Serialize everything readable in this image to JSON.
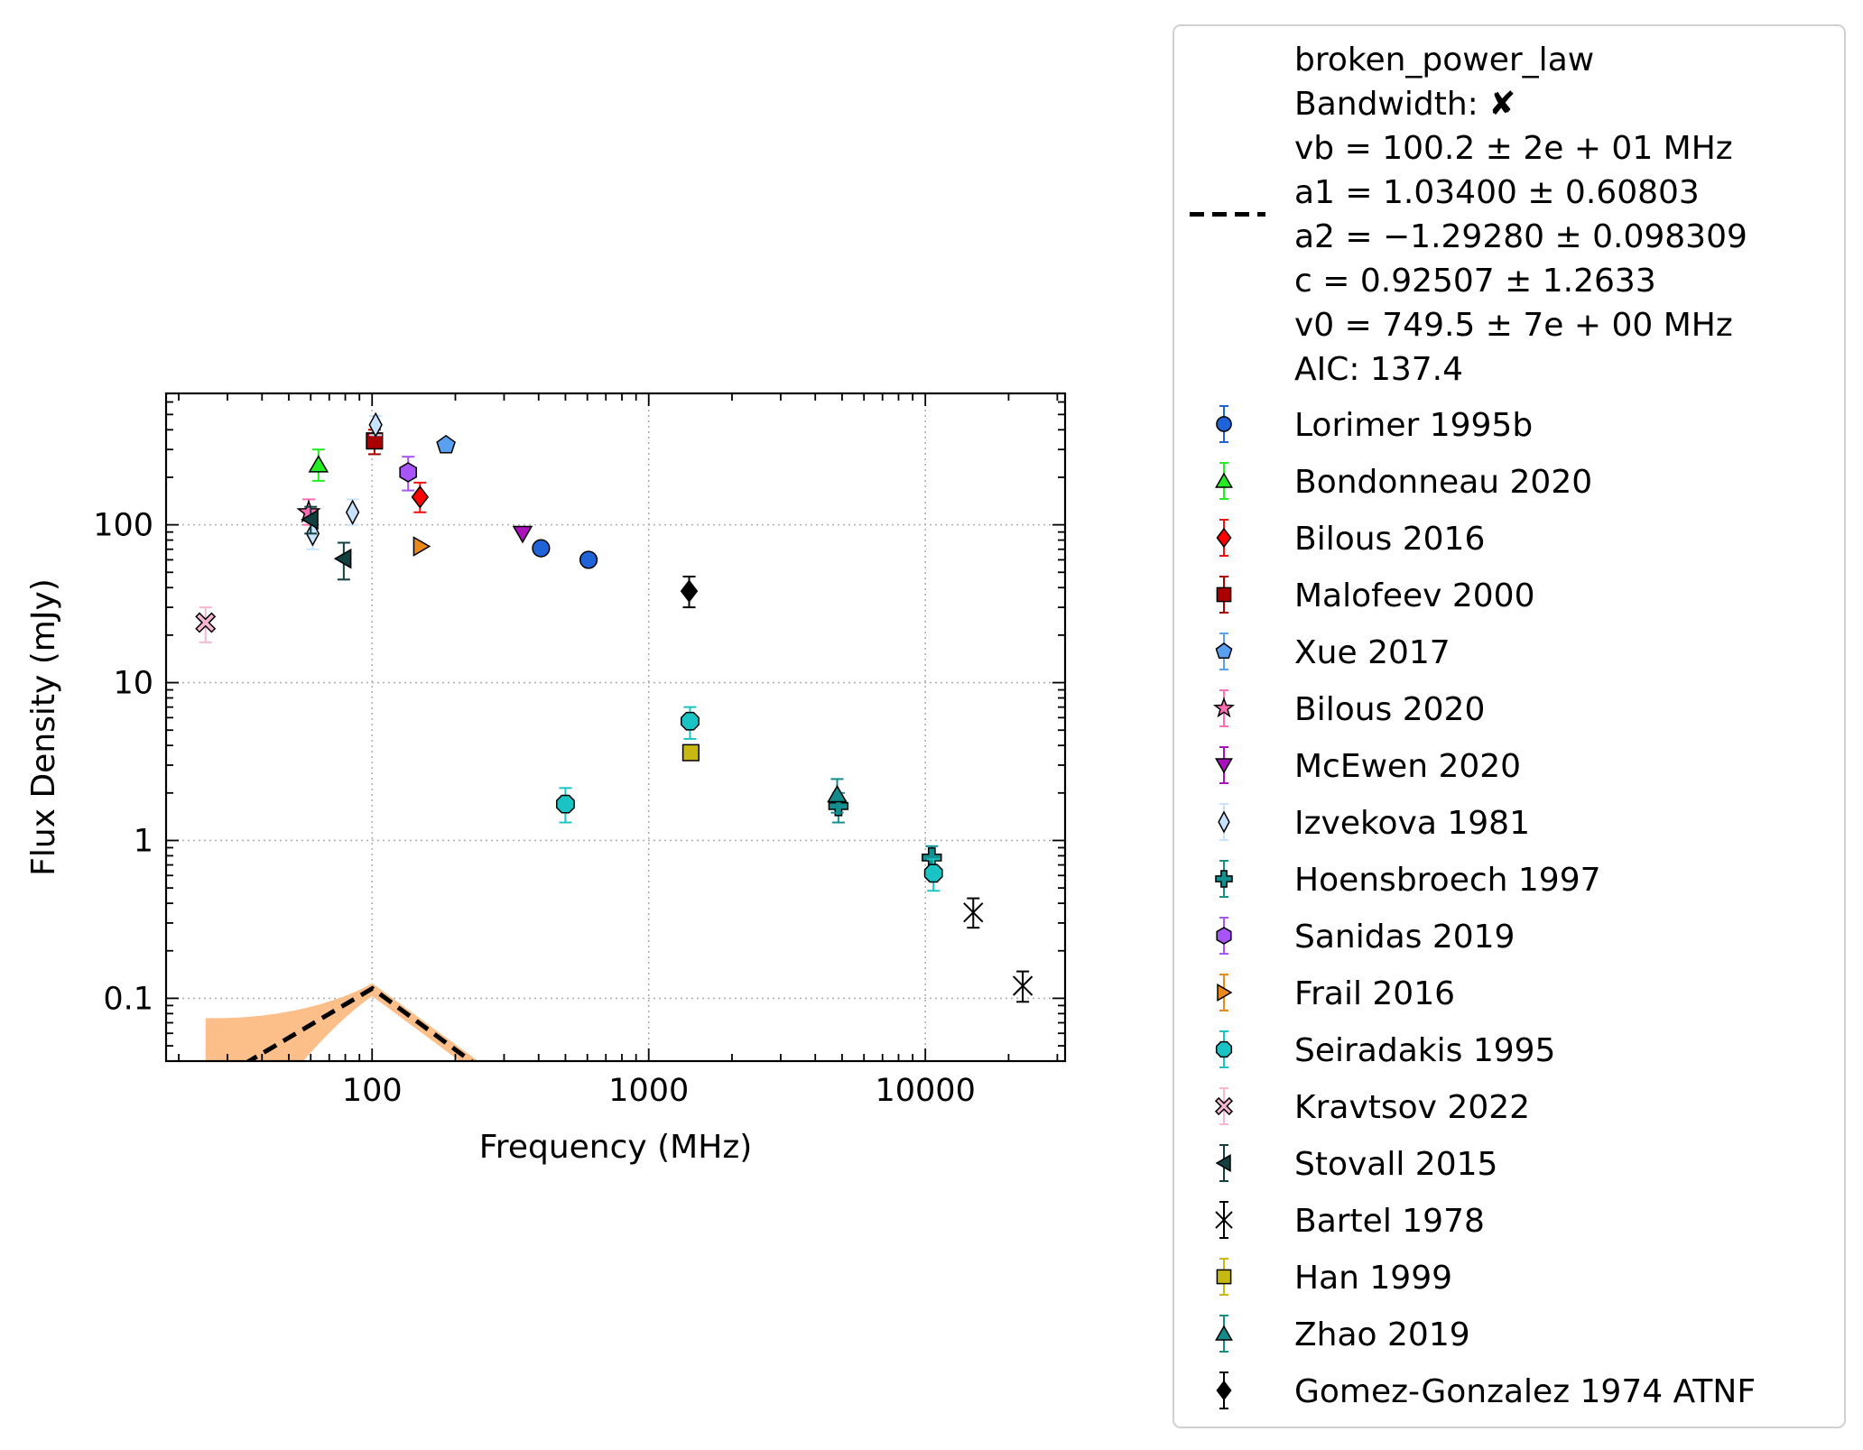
{
  "chart_data": {
    "type": "scatter",
    "x_scale": "log",
    "y_scale": "log",
    "xlabel": "Frequency (MHz)",
    "ylabel": "Flux Density (mJy)",
    "xlim": [
      18,
      32000
    ],
    "ylim": [
      0.04,
      680
    ],
    "grid": true,
    "legend_position": "outside-right",
    "x_ticks": [
      {
        "value": 100,
        "label": "100"
      },
      {
        "value": 1000,
        "label": "1000"
      },
      {
        "value": 10000,
        "label": "10000"
      }
    ],
    "y_ticks": [
      {
        "value": 0.1,
        "label": "0.1"
      },
      {
        "value": 1,
        "label": "1"
      },
      {
        "value": 10,
        "label": "10"
      },
      {
        "value": 100,
        "label": "100"
      }
    ],
    "fit": {
      "name": "broken_power_law",
      "legend_lines": [
        "broken_power_law",
        "Bandwidth: ✘",
        "vb = 100.2 ± 2e + 01 MHz",
        "a1 = 1.03400 ± 0.60803",
        "a2 = −1.29280 ± 0.098309",
        "c = 0.92507 ± 1.2633",
        "v0 = 749.5 ± 7e + 00 MHz",
        "AIC: 137.4"
      ],
      "vb": 100.2,
      "a1": 1.034,
      "a2": -1.2928,
      "c": 0.92507,
      "v0": 749.5,
      "x_range": [
        25,
        22000
      ],
      "line_color": "#000000",
      "band_color": "#fdbf8a"
    },
    "series": [
      {
        "name": "Lorimer 1995b",
        "marker": "circle",
        "color": "#1f63d9",
        "ecolor": "#1f63d9",
        "points": [
          {
            "x": 408,
            "y": 71
          },
          {
            "x": 606,
            "y": 60
          }
        ]
      },
      {
        "name": "Bondonneau 2020",
        "marker": "triangle-up",
        "color": "#22ee22",
        "ecolor": "#22ee22",
        "points": [
          {
            "x": 64,
            "y": 240,
            "lo": 190,
            "hi": 300
          }
        ]
      },
      {
        "name": "Bilous 2016",
        "marker": "diamond",
        "color": "#ff0000",
        "ecolor": "#ee1111",
        "points": [
          {
            "x": 149,
            "y": 150,
            "lo": 120,
            "hi": 185
          }
        ]
      },
      {
        "name": "Malofeev 2000",
        "marker": "square",
        "color": "#aa0000",
        "ecolor": "#aa0000",
        "points": [
          {
            "x": 102,
            "y": 340,
            "lo": 280,
            "hi": 400
          }
        ]
      },
      {
        "name": "Xue 2017",
        "marker": "pentagon",
        "color": "#5aa0f0",
        "ecolor": "#5aa0f0",
        "points": [
          {
            "x": 185,
            "y": 320
          }
        ]
      },
      {
        "name": "Bilous 2020",
        "marker": "star",
        "color": "#ff6eb4",
        "ecolor": "#ff6eb4",
        "points": [
          {
            "x": 59,
            "y": 120,
            "lo": 100,
            "hi": 145
          }
        ]
      },
      {
        "name": "McEwen 2020",
        "marker": "triangle-down",
        "color": "#aa10bb",
        "ecolor": "#aa10bb",
        "points": [
          {
            "x": 350,
            "y": 88
          }
        ]
      },
      {
        "name": "Izvekova 1981",
        "marker": "thin-diamond",
        "color": "#c6e2ff",
        "ecolor": "#c6e2ff",
        "points": [
          {
            "x": 61,
            "y": 88,
            "lo": 70,
            "hi": 105
          },
          {
            "x": 85,
            "y": 120,
            "lo": 100,
            "hi": 145
          },
          {
            "x": 103,
            "y": 430,
            "lo": 370,
            "hi": 490
          }
        ]
      },
      {
        "name": "Hoensbroech 1997",
        "marker": "plus",
        "color": "#149090",
        "ecolor": "#149090",
        "points": [
          {
            "x": 4850,
            "y": 1.65,
            "lo": 1.3,
            "hi": 2.0
          },
          {
            "x": 10550,
            "y": 0.78,
            "lo": 0.64,
            "hi": 0.92
          }
        ]
      },
      {
        "name": "Sanidas 2019",
        "marker": "hexagon",
        "color": "#a855f7",
        "ecolor": "#a855f7",
        "points": [
          {
            "x": 135,
            "y": 215,
            "lo": 165,
            "hi": 270
          }
        ]
      },
      {
        "name": "Frail 2016",
        "marker": "triangle-right",
        "color": "#e8891a",
        "ecolor": "#e8891a",
        "points": [
          {
            "x": 150,
            "y": 73
          }
        ]
      },
      {
        "name": "Seiradakis 1995",
        "marker": "octagon",
        "color": "#1ac4c4",
        "ecolor": "#1ac4c4",
        "points": [
          {
            "x": 500,
            "y": 1.7,
            "lo": 1.3,
            "hi": 2.15
          },
          {
            "x": 1410,
            "y": 5.7,
            "lo": 4.4,
            "hi": 7.0
          },
          {
            "x": 10700,
            "y": 0.62,
            "lo": 0.48,
            "hi": 0.76
          }
        ]
      },
      {
        "name": "Kravtsov 2022",
        "marker": "x-filled",
        "color": "#f7b6d2",
        "ecolor": "#f7b6d2",
        "points": [
          {
            "x": 25,
            "y": 24,
            "lo": 18,
            "hi": 30
          }
        ]
      },
      {
        "name": "Stovall 2015",
        "marker": "triangle-left",
        "color": "#123f3f",
        "ecolor": "#123f3f",
        "points": [
          {
            "x": 60,
            "y": 108,
            "lo": 88,
            "hi": 130
          },
          {
            "x": 79,
            "y": 61,
            "lo": 45,
            "hi": 77
          }
        ]
      },
      {
        "name": "Bartel 1978",
        "marker": "x",
        "color": "#000000",
        "ecolor": "#000000",
        "points": [
          {
            "x": 14900,
            "y": 0.35,
            "lo": 0.28,
            "hi": 0.43
          },
          {
            "x": 22500,
            "y": 0.12,
            "lo": 0.095,
            "hi": 0.148
          }
        ]
      },
      {
        "name": "Han 1999",
        "marker": "square",
        "color": "#c8b812",
        "ecolor": "#c8b812",
        "points": [
          {
            "x": 1420,
            "y": 3.6
          }
        ]
      },
      {
        "name": "Zhao 2019",
        "marker": "triangle-up",
        "color": "#148a8a",
        "ecolor": "#148a8a",
        "points": [
          {
            "x": 4800,
            "y": 1.95,
            "lo": 1.5,
            "hi": 2.45
          }
        ]
      },
      {
        "name": "Gomez-Gonzalez 1974 ATNF",
        "marker": "diamond",
        "color": "#000000",
        "ecolor": "#000000",
        "points": [
          {
            "x": 1400,
            "y": 38,
            "lo": 30,
            "hi": 47
          }
        ]
      }
    ]
  }
}
